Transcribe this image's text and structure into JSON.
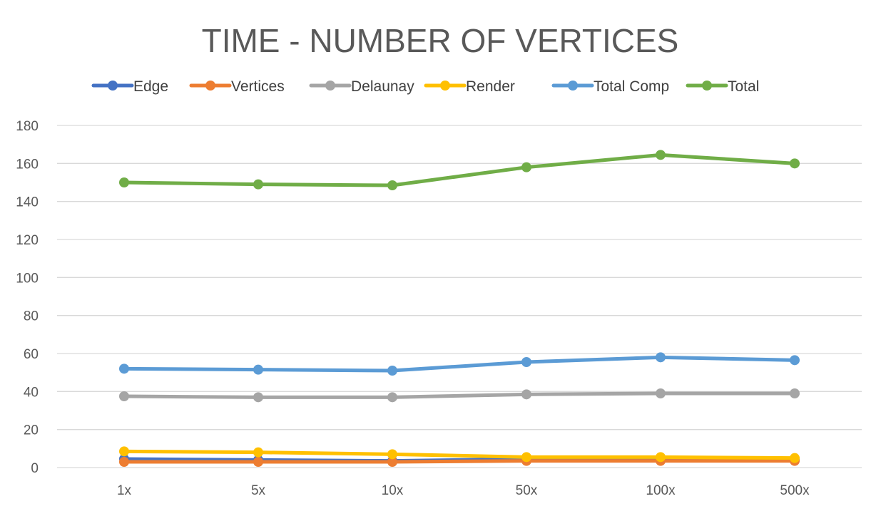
{
  "chart_data": {
    "type": "line",
    "title": "TIME - NUMBER OF VERTICES",
    "xlabel": "",
    "ylabel": "",
    "categories": [
      "1x",
      "5x",
      "10x",
      "50x",
      "100x",
      "500x"
    ],
    "ylim": [
      0,
      180
    ],
    "yticks": [
      0,
      20,
      40,
      60,
      80,
      100,
      120,
      140,
      160,
      180
    ],
    "grid": true,
    "legend_position": "top",
    "series": [
      {
        "name": "Edge",
        "color": "#4472c4",
        "values": [
          4.5,
          4,
          3.5,
          4.5,
          4,
          4
        ]
      },
      {
        "name": "Vertices",
        "color": "#ed7d31",
        "values": [
          3,
          3,
          3,
          3.5,
          3.5,
          3.5
        ]
      },
      {
        "name": "Delaunay",
        "color": "#a5a5a5",
        "values": [
          37.5,
          37,
          37,
          38.5,
          39,
          39
        ]
      },
      {
        "name": "Render",
        "color": "#ffc000",
        "values": [
          8.5,
          8,
          7,
          5.5,
          5.5,
          5
        ]
      },
      {
        "name": "Total Comp",
        "color": "#5b9bd5",
        "values": [
          52,
          51.5,
          51,
          55.5,
          58,
          56.5
        ]
      },
      {
        "name": "Total",
        "color": "#70ad47",
        "values": [
          150,
          149,
          148.5,
          158,
          164.5,
          160
        ]
      }
    ]
  }
}
